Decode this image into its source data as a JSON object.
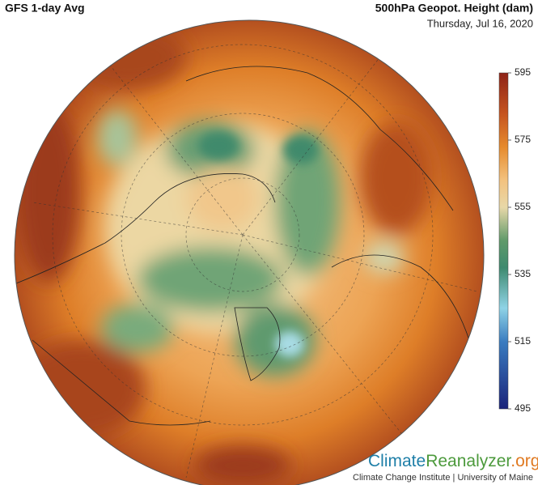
{
  "header": {
    "left_title": "GFS 1-day Avg",
    "right_title": "500hPa Geopot. Height (dam)",
    "date": "Thursday, Jul 16, 2020"
  },
  "colorbar": {
    "ticks": [
      595,
      575,
      555,
      535,
      515,
      495
    ]
  },
  "footer": {
    "logo": [
      "Climate",
      "Reanalyzer",
      ".org"
    ],
    "credit": "Climate Change Institute | University of Maine"
  }
}
